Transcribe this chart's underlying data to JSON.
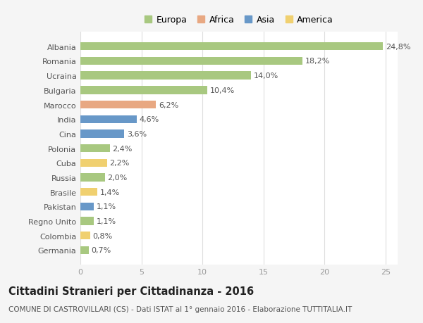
{
  "countries": [
    "Albania",
    "Romania",
    "Ucraina",
    "Bulgaria",
    "Marocco",
    "India",
    "Cina",
    "Polonia",
    "Cuba",
    "Russia",
    "Brasile",
    "Pakistan",
    "Regno Unito",
    "Colombia",
    "Germania"
  ],
  "values": [
    24.8,
    18.2,
    14.0,
    10.4,
    6.2,
    4.6,
    3.6,
    2.4,
    2.2,
    2.0,
    1.4,
    1.1,
    1.1,
    0.8,
    0.7
  ],
  "labels": [
    "24,8%",
    "18,2%",
    "14,0%",
    "10,4%",
    "6,2%",
    "4,6%",
    "3,6%",
    "2,4%",
    "2,2%",
    "2,0%",
    "1,4%",
    "1,1%",
    "1,1%",
    "0,8%",
    "0,7%"
  ],
  "continents": [
    "Europa",
    "Europa",
    "Europa",
    "Europa",
    "Africa",
    "Asia",
    "Asia",
    "Europa",
    "America",
    "Europa",
    "America",
    "Asia",
    "Europa",
    "America",
    "Europa"
  ],
  "colors": {
    "Europa": "#a8c880",
    "Africa": "#e8a882",
    "Asia": "#6898c8",
    "America": "#f0d070"
  },
  "legend_order": [
    "Europa",
    "Africa",
    "Asia",
    "America"
  ],
  "title": "Cittadini Stranieri per Cittadinanza - 2016",
  "subtitle": "COMUNE DI CASTROVILLARI (CS) - Dati ISTAT al 1° gennaio 2016 - Elaborazione TUTTITALIA.IT",
  "xlim": [
    0,
    26
  ],
  "xticks": [
    0,
    5,
    10,
    15,
    20,
    25
  ],
  "background_color": "#f5f5f5",
  "plot_background": "#ffffff",
  "grid_color": "#dddddd",
  "title_fontsize": 10.5,
  "subtitle_fontsize": 7.5,
  "label_fontsize": 8,
  "tick_fontsize": 8,
  "bar_height": 0.55
}
